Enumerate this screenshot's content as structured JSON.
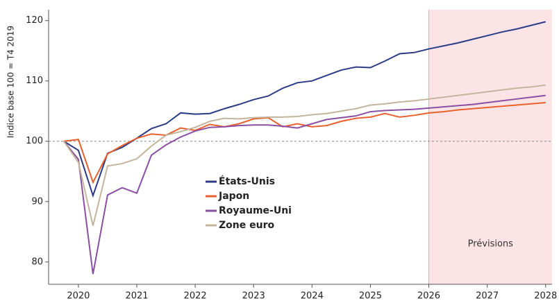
{
  "chart_data": {
    "type": "line",
    "ylabel": "Indice base 100 = T4 2019",
    "annotation": "Prévisions",
    "forecast_start": 2026,
    "reference_line": 100,
    "legend": "center",
    "x": [
      2019.75,
      2020,
      2020.25,
      2020.5,
      2020.75,
      2021,
      2021.25,
      2021.5,
      2021.75,
      2022,
      2022.25,
      2022.5,
      2022.75,
      2023,
      2023.25,
      2023.5,
      2023.75,
      2024,
      2024.25,
      2024.5,
      2024.75,
      2025,
      2025.25,
      2025.5,
      2025.75,
      2026,
      2026.25,
      2026.5,
      2026.75,
      2027,
      2027.25,
      2027.5,
      2027.75,
      2028
    ],
    "series": [
      {
        "name": "États-Unis",
        "color": "#2b3a85",
        "values": [
          100,
          98.5,
          91,
          98,
          99,
          100.5,
          102.1,
          102.9,
          104.7,
          104.5,
          104.6,
          105.4,
          106.1,
          106.9,
          107.5,
          108.8,
          109.7,
          110,
          110.9,
          111.8,
          112.3,
          112.2,
          113.3,
          114.5,
          114.7,
          115.3,
          115.8,
          116.3,
          116.9,
          117.5,
          118.1,
          118.6,
          119.2,
          119.8
        ]
      },
      {
        "name": "Japon",
        "color": "#e8602c",
        "values": [
          100,
          100.3,
          93.2,
          97.9,
          99.3,
          100.5,
          101.2,
          101,
          102.2,
          101.8,
          102.8,
          102.4,
          102.9,
          103.7,
          103.9,
          102.4,
          102.9,
          102.4,
          102.6,
          103.3,
          103.8,
          104,
          104.6,
          104,
          104.3,
          104.7,
          104.9,
          105.2,
          105.4,
          105.6,
          105.8,
          106,
          106.2,
          106.4
        ]
      },
      {
        "name": "Royaume-Uni",
        "color": "#8a4fa3",
        "values": [
          100,
          97,
          78,
          91.1,
          92.3,
          91.4,
          97.7,
          99.4,
          100.7,
          101.7,
          102.3,
          102.4,
          102.6,
          102.7,
          102.7,
          102.5,
          102.2,
          102.9,
          103.6,
          103.9,
          104.2,
          104.9,
          105.1,
          105.2,
          105.3,
          105.5,
          105.7,
          105.9,
          106.1,
          106.4,
          106.7,
          107,
          107.3,
          107.6
        ]
      },
      {
        "name": "Zone euro",
        "color": "#c4b49c",
        "values": [
          100,
          96.5,
          86,
          95.9,
          96.3,
          97.1,
          99.2,
          101,
          101.6,
          102.3,
          103.3,
          103.8,
          103.7,
          103.9,
          104,
          104,
          104.1,
          104.4,
          104.6,
          105,
          105.4,
          106,
          106.2,
          106.5,
          106.7,
          107,
          107.3,
          107.6,
          107.9,
          108.2,
          108.5,
          108.8,
          109,
          109.3
        ]
      }
    ],
    "xlim": [
      2019.49,
      2028.11
    ],
    "xticks": [
      2020,
      2021,
      2022,
      2023,
      2024,
      2025,
      2026,
      2027,
      2028
    ],
    "ylim": [
      76.3,
      121.8
    ],
    "yticks": [
      80,
      90,
      100,
      110,
      120
    ]
  }
}
